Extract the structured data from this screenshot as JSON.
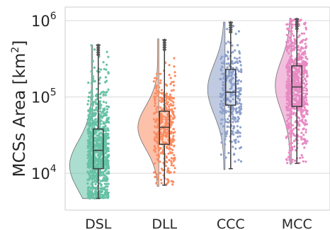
{
  "chart_data": {
    "type": "raincloud",
    "ylabel": "MCSs Area [km",
    "ylabel_sup": "2",
    "ylabel_close": "]",
    "yscale": "log",
    "ylim": [
      3300,
      1500000
    ],
    "yticks": [
      {
        "value": 10000,
        "base": "10",
        "exp": "4"
      },
      {
        "value": 100000,
        "base": "10",
        "exp": "5"
      },
      {
        "value": 1000000,
        "base": "10",
        "exp": "6"
      }
    ],
    "grid": true,
    "categories": [
      "DSL",
      "DLL",
      "CCC",
      "MCC"
    ],
    "series": [
      {
        "category": "DSL",
        "color": "#66c2a5",
        "n_points": 900,
        "min": 4700,
        "q1": 11500,
        "median": 20000,
        "q3": 38000,
        "max": 480000,
        "violin": {
          "log_min": 3.67,
          "log_max": 5.68,
          "mode": 4.1,
          "spread": 0.32,
          "max_halfwidth": 31
        }
      },
      {
        "category": "DLL",
        "color": "#fc8d62",
        "n_points": 400,
        "min": 7000,
        "q1": 24000,
        "median": 40000,
        "q3": 65000,
        "max": 560000,
        "violin": {
          "log_min": 3.83,
          "log_max": 5.76,
          "mode": 4.6,
          "spread": 0.28,
          "max_halfwidth": 28
        }
      },
      {
        "category": "CCC",
        "color": "#8da0cb",
        "n_points": 300,
        "min": 11500,
        "q1": 78000,
        "median": 115000,
        "q3": 230000,
        "max": 950000,
        "violin": {
          "log_min": 4.05,
          "log_max": 5.98,
          "mode": 5.1,
          "spread": 0.33,
          "max_halfwidth": 23
        }
      },
      {
        "category": "MCC",
        "color": "#e78ac3",
        "n_points": 700,
        "min": 13500,
        "q1": 75000,
        "median": 135000,
        "q3": 255000,
        "max": 1050000,
        "violin": {
          "log_min": 4.12,
          "log_max": 6.03,
          "mode": 5.15,
          "spread": 0.33,
          "max_halfwidth": 21
        }
      }
    ]
  }
}
